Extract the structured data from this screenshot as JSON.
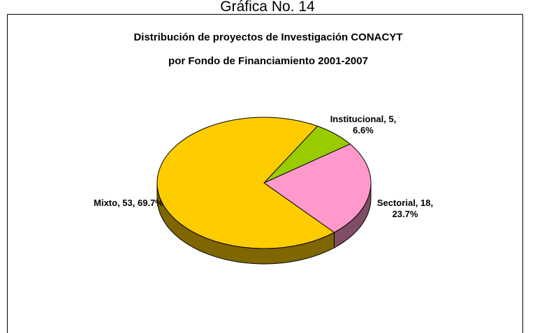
{
  "header": "Gráfica No. 14",
  "chart_data": {
    "type": "pie",
    "title": [
      "Distribución de proyectos de Investigación CONACYT",
      "por Fondo de Financiamiento 2001-2007"
    ],
    "categories": [
      "Institucional",
      "Sectorial",
      "Mixto"
    ],
    "values": [
      5,
      18,
      53
    ],
    "value_labels": [
      "Institucional, 5, 6.6%",
      "Sectorial, 18, 23.7%",
      "Mixto, 53, 69.7%"
    ],
    "colors": [
      "#99cc00",
      "#ff99cc",
      "#ffcc00"
    ],
    "three_d": true
  }
}
